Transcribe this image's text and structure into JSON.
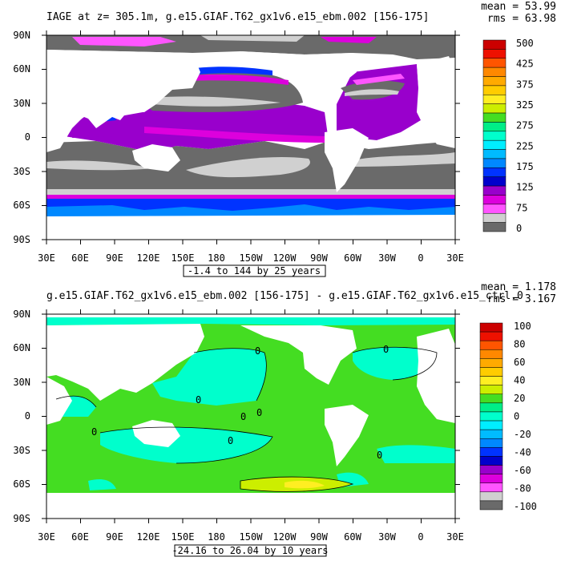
{
  "panels": [
    {
      "title": "IAGE at z= 305.1m, g.e15.GIAF.T62_gx1v6.e15_ebm.002 [156-175]",
      "stats": {
        "mean": "mean = 53.99",
        "rms": "rms = 63.98"
      },
      "lat_labels": [
        "90N",
        "60N",
        "30N",
        "0",
        "30S",
        "60S",
        "90S"
      ],
      "lon_labels": [
        "30E",
        "60E",
        "90E",
        "120E",
        "150E",
        "180",
        "150W",
        "120W",
        "90W",
        "60W",
        "30W",
        "0",
        "30E"
      ],
      "contour_note": "-1.4 to 144 by 25 years",
      "colorbar": {
        "labels": [
          "500",
          "425",
          "375",
          "325",
          "275",
          "225",
          "175",
          "125",
          "75",
          "0"
        ],
        "colors": [
          "#cc0000",
          "#ee1100",
          "#ff5500",
          "#ff8800",
          "#ffaa00",
          "#ffcc00",
          "#ffee22",
          "#ccee00",
          "#44dd22",
          "#00ee88",
          "#00ffcc",
          "#00eeff",
          "#00bbff",
          "#0088ff",
          "#0033ff",
          "#0000cc",
          "#9900cc",
          "#dd00dd",
          "#ff55ff",
          "#d0d0d0",
          "#6a6a6a"
        ]
      }
    },
    {
      "title": "g.e15.GIAF.T62_gx1v6.e15_ebm.002 [156-175] - g.e15.GIAF.T62_gx1v6.e15_ctrl.0",
      "stats": {
        "mean": "mean = 1.178",
        "rms": "rms = 3.167"
      },
      "lat_labels": [
        "90N",
        "60N",
        "30N",
        "0",
        "30S",
        "60S",
        "90S"
      ],
      "lon_labels": [
        "30E",
        "60E",
        "90E",
        "120E",
        "150E",
        "180",
        "150W",
        "120W",
        "90W",
        "60W",
        "30W",
        "0",
        "30E"
      ],
      "contour_note": "-24.16 to 26.04 by 10 years",
      "contour_labels": [
        "0",
        "0",
        "0",
        "0",
        "0",
        "0",
        "0",
        "0"
      ],
      "colorbar": {
        "labels": [
          "100",
          "80",
          "60",
          "40",
          "20",
          "0",
          "-20",
          "-40",
          "-60",
          "-80",
          "-100"
        ],
        "colors": [
          "#cc0000",
          "#ee1100",
          "#ff5500",
          "#ff8800",
          "#ffaa00",
          "#ffcc00",
          "#ffee22",
          "#ccee00",
          "#44dd22",
          "#00ee88",
          "#00ffcc",
          "#00eeff",
          "#00bbff",
          "#0088ff",
          "#0033ff",
          "#0000cc",
          "#9900cc",
          "#dd00dd",
          "#ff55ff",
          "#d0d0d0",
          "#6a6a6a"
        ]
      }
    }
  ]
}
